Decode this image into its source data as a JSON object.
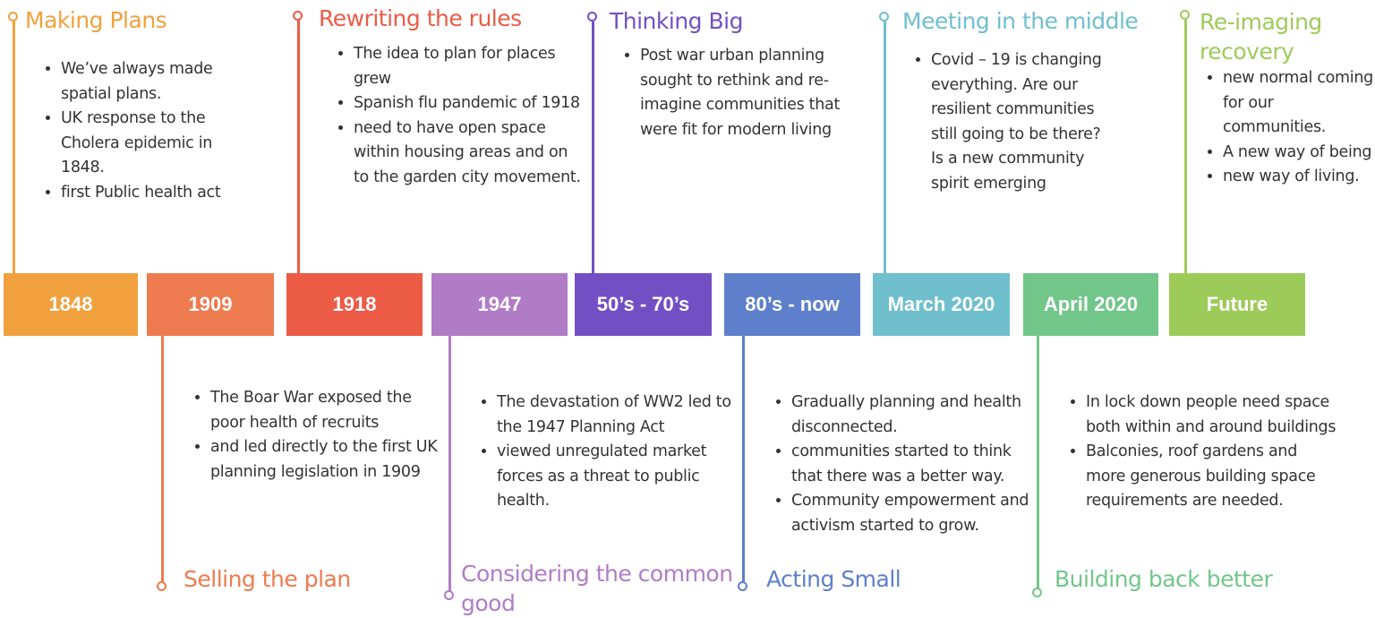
{
  "events": [
    {
      "year": "1848",
      "color": "#F0A13E",
      "heading": "Making Plans",
      "notes": [
        "We’ve always made spatial plans.",
        "UK response to the Cholera epidemic in 1848.",
        "first Public health act"
      ]
    },
    {
      "year": "1909",
      "color": "#EE7B4F",
      "heading": "Selling the plan",
      "notes": [
        "The Boar War exposed the poor health of recruits",
        " and led directly to the first UK planning legislation in 1909"
      ]
    },
    {
      "year": "1918",
      "color": "#EC5B46",
      "heading": "Rewriting the rules",
      "notes": [
        "The idea to plan for places grew",
        " Spanish flu pandemic of 1918",
        "need to have open space within housing areas and on to the garden city movement."
      ]
    },
    {
      "year": "1947",
      "color": "#B07CC6",
      "heading": "Considering the common good",
      "notes": [
        "The devastation of WW2 led to the 1947 Planning Act",
        " viewed unregulated market forces as a threat to public health."
      ]
    },
    {
      "year": "50’s - 70’s",
      "color": "#7250C4",
      "heading": "Thinking Big",
      "notes": [
        "Post war urban planning sought to rethink and re-imagine communities that were fit for modern living"
      ]
    },
    {
      "year": "80’s - now",
      "color": "#5E7FCB",
      "heading": "Acting Small",
      "notes": [
        "Gradually planning and health disconnected.",
        "communities started to think that there was a better way.",
        "Community empowerment and activism started to grow."
      ]
    },
    {
      "year": "March 2020",
      "color": "#70BFCC",
      "heading": "Meeting in the middle",
      "notes": [
        "Covid – 19 is changing everything. Are our resilient communities still going to be there? Is a new community spirit emerging"
      ]
    },
    {
      "year": "April 2020",
      "color": "#72C68A",
      "heading": "Building back better",
      "notes": [
        "In lock down people need space both within and around buildings",
        " Balconies, roof gardens and more generous building space requirements are needed."
      ]
    },
    {
      "year": "Future",
      "color": "#9DCB5A",
      "heading": "Re-imaging recovery",
      "notes": [
        "new normal coming for our communities.",
        " A new way of being",
        "new way of living."
      ]
    }
  ]
}
